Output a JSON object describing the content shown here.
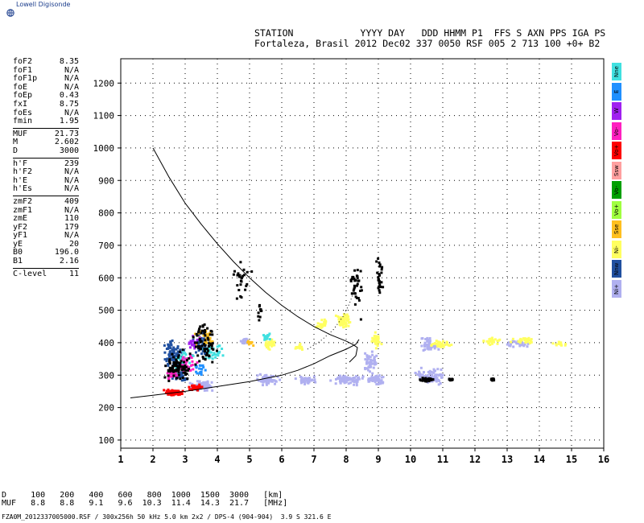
{
  "brand": {
    "name": "Lowell Digisonde"
  },
  "header": {
    "line1": "STATION            YYYY DAY   DDD HHMM P1  FFS S AXN PPS IGA PS",
    "line2": "Fortaleza, Brasil 2012 Dec02 337 0050 RSF 005 2 713 100 +0+ B2"
  },
  "params": {
    "group1": [
      {
        "k": "foF2",
        "v": "8.35"
      },
      {
        "k": "foF1",
        "v": "N/A"
      },
      {
        "k": "foF1p",
        "v": "N/A"
      },
      {
        "k": "foE",
        "v": "N/A"
      },
      {
        "k": "foEp",
        "v": "0.43"
      },
      {
        "k": "fxI",
        "v": "8.75"
      },
      {
        "k": "foEs",
        "v": "N/A"
      },
      {
        "k": "fmin",
        "v": "1.95"
      }
    ],
    "group2": [
      {
        "k": "MUF",
        "v": "21.73"
      },
      {
        "k": "M",
        "v": "2.602"
      },
      {
        "k": "D",
        "v": "3000"
      }
    ],
    "group3": [
      {
        "k": "h'F",
        "v": "239"
      },
      {
        "k": "h'F2",
        "v": "N/A"
      },
      {
        "k": "h'E",
        "v": "N/A"
      },
      {
        "k": "h'Es",
        "v": "N/A"
      }
    ],
    "group4": [
      {
        "k": "zmF2",
        "v": "409"
      },
      {
        "k": "zmF1",
        "v": "N/A"
      },
      {
        "k": "zmE",
        "v": "110"
      },
      {
        "k": "yF2",
        "v": "179"
      },
      {
        "k": "yF1",
        "v": "N/A"
      },
      {
        "k": "yE",
        "v": "20"
      },
      {
        "k": "B0",
        "v": "196.0"
      },
      {
        "k": "B1",
        "v": "2.16"
      }
    ],
    "group5": [
      {
        "k": "C-level",
        "v": "11"
      }
    ]
  },
  "legend": [
    {
      "label": "Nne",
      "color": "#40e0e0"
    },
    {
      "label": "E",
      "color": "#2090ff"
    },
    {
      "label": "W",
      "color": "#a020f0"
    },
    {
      "label": "Vo-",
      "color": "#ff20c0"
    },
    {
      "label": "Vo+",
      "color": "#ff0000"
    },
    {
      "label": "Ssw",
      "color": "#ffa0a0"
    },
    {
      "label": "Vo-",
      "color": "#00a000"
    },
    {
      "label": "Vo+",
      "color": "#a0ff40"
    },
    {
      "label": "Sse",
      "color": "#ffc020"
    },
    {
      "label": "Ni-",
      "color": "#ffff60"
    },
    {
      "label": "Nnw",
      "color": "#2050a0"
    },
    {
      "label": "Ni+",
      "color": "#b0b0f0"
    }
  ],
  "footer": {
    "line1": "D     100   200   400   600   800  1000  1500  3000   [km]",
    "line2": "MUF   8.8   8.8   9.1   9.6  10.3  11.4  14.3  21.7   [MHz]",
    "file": "FZA0M_2012337005000.RSF / 300x256h 50 kHz 5.0 km 2x2 / DPS-4 (904-904)  3.9 S 321.6 E"
  },
  "chart_data": {
    "type": "scatter",
    "title": "",
    "xlabel": "",
    "ylabel": "",
    "xlim": [
      1,
      16
    ],
    "ylim": [
      75,
      1275
    ],
    "xticks": [
      "1",
      "2",
      "3",
      "4",
      "5",
      "6",
      "7",
      "8",
      "9",
      "10",
      "11",
      "12",
      "13",
      "14",
      "15",
      "16"
    ],
    "yticks": [
      "100",
      "200",
      "300",
      "400",
      "500",
      "600",
      "700",
      "800",
      "900",
      "1000",
      "1100",
      "1200"
    ],
    "grid": true,
    "series": [
      {
        "name": "Ni+",
        "color": "#b0b0f0",
        "clusters": [
          [
            3.5,
            270,
            0.5,
            20,
            70
          ],
          [
            5.5,
            290,
            0.45,
            20,
            60
          ],
          [
            6.7,
            290,
            0.4,
            15,
            40
          ],
          [
            8.0,
            290,
            0.6,
            20,
            80
          ],
          [
            8.9,
            290,
            0.35,
            20,
            50
          ],
          [
            10.6,
            300,
            0.6,
            30,
            70
          ],
          [
            8.7,
            340,
            0.3,
            50,
            50
          ],
          [
            10.5,
            395,
            0.4,
            30,
            40
          ],
          [
            4.8,
            410,
            0.2,
            15,
            20
          ],
          [
            13.3,
            400,
            0.5,
            15,
            30
          ]
        ]
      },
      {
        "name": "Ni-",
        "color": "#ffff60",
        "clusters": [
          [
            7.9,
            470,
            0.3,
            30,
            60
          ],
          [
            7.2,
            460,
            0.2,
            20,
            25
          ],
          [
            8.9,
            410,
            0.2,
            30,
            40
          ],
          [
            5.6,
            400,
            0.2,
            20,
            30
          ],
          [
            6.5,
            390,
            0.15,
            15,
            15
          ],
          [
            10.9,
            400,
            0.4,
            15,
            35
          ],
          [
            12.5,
            410,
            0.4,
            15,
            25
          ],
          [
            13.5,
            410,
            0.5,
            15,
            30
          ],
          [
            14.6,
            400,
            0.3,
            10,
            15
          ]
        ]
      },
      {
        "name": "Vo+",
        "color": "#ff0000",
        "clusters": [
          [
            2.6,
            250,
            0.35,
            12,
            70
          ],
          [
            3.3,
            265,
            0.3,
            12,
            40
          ]
        ]
      },
      {
        "name": "Nnw",
        "color": "#2050a0",
        "clusters": [
          [
            2.6,
            370,
            0.4,
            50,
            70
          ],
          [
            3.5,
            400,
            0.4,
            50,
            60
          ],
          [
            2.8,
            300,
            0.3,
            20,
            30
          ]
        ]
      },
      {
        "name": "Nne",
        "color": "#40e0e0",
        "clusters": [
          [
            2.9,
            350,
            0.4,
            40,
            40
          ],
          [
            3.8,
            380,
            0.4,
            40,
            30
          ],
          [
            5.5,
            430,
            0.2,
            30,
            15
          ]
        ]
      },
      {
        "name": "Vo-",
        "color": "#ff20c0",
        "clusters": [
          [
            3.0,
            340,
            0.4,
            40,
            30
          ],
          [
            2.6,
            300,
            0.3,
            20,
            20
          ]
        ]
      },
      {
        "name": "Sse",
        "color": "#ffc020",
        "clusters": [
          [
            3.6,
            420,
            0.4,
            40,
            30
          ],
          [
            5.0,
            400,
            0.2,
            20,
            10
          ]
        ]
      },
      {
        "name": "W",
        "color": "#a020f0",
        "clusters": [
          [
            3.2,
            400,
            0.3,
            30,
            20
          ]
        ]
      },
      {
        "name": "E",
        "color": "#2090ff",
        "clusters": [
          [
            3.4,
            320,
            0.3,
            30,
            20
          ]
        ]
      },
      {
        "name": "black",
        "color": "#000000",
        "clusters": [
          [
            2.7,
            330,
            0.5,
            60,
            90
          ],
          [
            3.6,
            400,
            0.5,
            80,
            70
          ],
          [
            4.7,
            600,
            0.4,
            80,
            25
          ],
          [
            8.3,
            560,
            0.25,
            120,
            35
          ],
          [
            9.0,
            600,
            0.15,
            100,
            25
          ],
          [
            10.5,
            290,
            0.3,
            8,
            30
          ],
          [
            11.2,
            290,
            0.1,
            5,
            10
          ],
          [
            12.5,
            290,
            0.1,
            5,
            10
          ],
          [
            5.3,
            500,
            0.1,
            40,
            10
          ]
        ]
      }
    ],
    "curve_xf": [
      [
        2.0,
        1000
      ],
      [
        2.5,
        910
      ],
      [
        3.0,
        830
      ],
      [
        3.5,
        765
      ],
      [
        4.0,
        705
      ],
      [
        4.5,
        650
      ],
      [
        5.0,
        600
      ],
      [
        5.5,
        555
      ],
      [
        6.0,
        515
      ],
      [
        6.5,
        480
      ],
      [
        7.0,
        450
      ],
      [
        7.5,
        425
      ],
      [
        8.0,
        405
      ],
      [
        8.2,
        395
      ],
      [
        8.35,
        385
      ],
      [
        8.3,
        360
      ],
      [
        8.1,
        340
      ]
    ],
    "curve_oprofile": [
      [
        1.3,
        230
      ],
      [
        2.0,
        238
      ],
      [
        3.0,
        250
      ],
      [
        4.0,
        265
      ],
      [
        5.0,
        280
      ],
      [
        6.0,
        300
      ],
      [
        6.5,
        315
      ],
      [
        7.0,
        335
      ],
      [
        7.5,
        360
      ],
      [
        8.0,
        380
      ],
      [
        8.3,
        395
      ],
      [
        8.4,
        410
      ]
    ],
    "dotted_curve": [
      [
        6.8,
        380
      ],
      [
        7.2,
        405
      ],
      [
        7.6,
        440
      ],
      [
        7.9,
        480
      ],
      [
        8.1,
        520
      ],
      [
        8.25,
        560
      ]
    ]
  }
}
